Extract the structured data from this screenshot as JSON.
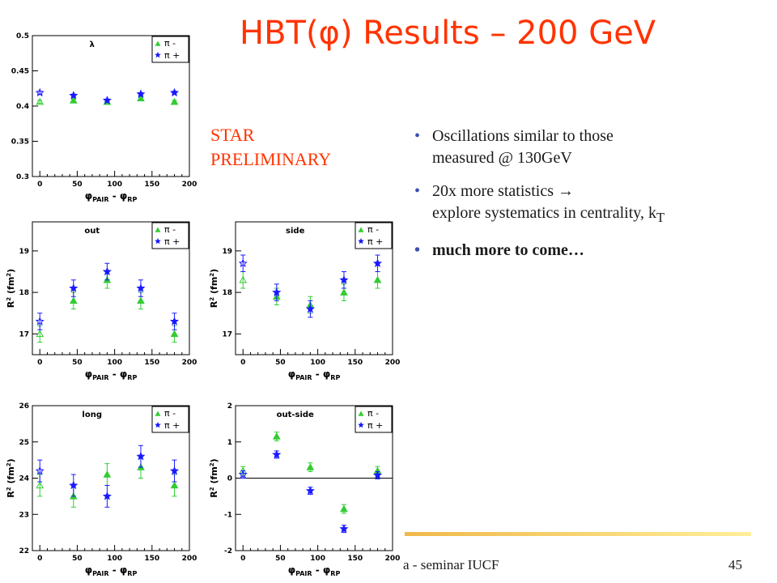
{
  "slide": {
    "title": "HBT(φ) Results – 200 GeV",
    "preliminary": [
      "STAR",
      "PRELIMINARY"
    ],
    "bullets": [
      {
        "lines": [
          "Oscillations similar to those",
          "measured @ 130GeV"
        ],
        "bold": false
      },
      {
        "lines": [
          "20x more statistics → ",
          "explore systematics in centrality, k"
        ],
        "sub": "T",
        "bold": false
      },
      {
        "lines": [
          "much more to come…"
        ],
        "bold": true
      }
    ],
    "footer_text": "a - seminar IUCF",
    "page_number": "45"
  },
  "colors": {
    "title": "#ff3300",
    "pi_minus": "#33cc33",
    "pi_plus": "#1a1aff",
    "footer_bar_start": "#f0b84a",
    "footer_bar_end": "#ffef9a"
  },
  "chart_data": [
    {
      "type": "scatter",
      "title": "λ",
      "xlabel": "φPAIR - φRP",
      "ylabel": "",
      "xlim": [
        -10,
        200
      ],
      "ylim": [
        0.3,
        0.5
      ],
      "xticks": [
        0,
        50,
        100,
        150,
        200
      ],
      "yticks": [
        0.3,
        0.35,
        0.4,
        0.45,
        0.5
      ],
      "ytick_labels": [
        "0.3",
        "0.35",
        "0.4",
        "0.45",
        "0.5"
      ],
      "legend": [
        "π -",
        "π +"
      ],
      "series": [
        {
          "name": "π -",
          "x": [
            0,
            45,
            90,
            135,
            180
          ],
          "y": [
            0.406,
            0.408,
            0.406,
            0.411,
            0.406
          ],
          "err": [
            0.002,
            0.002,
            0.002,
            0.002,
            0.002
          ]
        },
        {
          "name": "π +",
          "x": [
            0,
            45,
            90,
            135,
            180
          ],
          "y": [
            0.419,
            0.415,
            0.408,
            0.417,
            0.419
          ],
          "err": [
            0.002,
            0.002,
            0.002,
            0.002,
            0.002
          ]
        }
      ]
    },
    {
      "type": "scatter",
      "title": "out",
      "xlabel": "φPAIR - φRP",
      "ylabel": "R2 (fm2)",
      "xlim": [
        -10,
        200
      ],
      "ylim": [
        16.5,
        19.7
      ],
      "xticks": [
        0,
        50,
        100,
        150,
        200
      ],
      "yticks": [
        17,
        18,
        19
      ],
      "ytick_labels": [
        "17",
        "18",
        "19"
      ],
      "legend": [
        "π -",
        "π +"
      ],
      "series": [
        {
          "name": "π -",
          "x": [
            0,
            45,
            90,
            135,
            180
          ],
          "y": [
            17.0,
            17.8,
            18.3,
            17.8,
            17.0
          ],
          "err": [
            0.2,
            0.2,
            0.2,
            0.2,
            0.2
          ]
        },
        {
          "name": "π +",
          "x": [
            0,
            45,
            90,
            135,
            180
          ],
          "y": [
            17.3,
            18.1,
            18.5,
            18.1,
            17.3
          ],
          "err": [
            0.2,
            0.2,
            0.2,
            0.2,
            0.2
          ]
        }
      ]
    },
    {
      "type": "scatter",
      "title": "side",
      "xlabel": "φPAIR - φRP",
      "ylabel": "R2 (fm2)",
      "xlim": [
        -10,
        200
      ],
      "ylim": [
        16.5,
        19.7
      ],
      "xticks": [
        0,
        50,
        100,
        150,
        200
      ],
      "yticks": [
        17,
        18,
        19
      ],
      "ytick_labels": [
        "17",
        "18",
        "19"
      ],
      "legend": [
        "π -",
        "π +"
      ],
      "series": [
        {
          "name": "π -",
          "x": [
            0,
            45,
            90,
            135,
            180
          ],
          "y": [
            18.3,
            17.9,
            17.7,
            18.0,
            18.3
          ],
          "err": [
            0.2,
            0.2,
            0.2,
            0.2,
            0.2
          ]
        },
        {
          "name": "π +",
          "x": [
            0,
            45,
            90,
            135,
            180
          ],
          "y": [
            18.7,
            18.0,
            17.6,
            18.3,
            18.7
          ],
          "err": [
            0.2,
            0.2,
            0.2,
            0.2,
            0.2
          ]
        }
      ]
    },
    {
      "type": "scatter",
      "title": "long",
      "xlabel": "φPAIR - φRP",
      "ylabel": "R2 (fm2)",
      "xlim": [
        -10,
        200
      ],
      "ylim": [
        22,
        26
      ],
      "xticks": [
        0,
        50,
        100,
        150,
        200
      ],
      "yticks": [
        22,
        23,
        24,
        25,
        26
      ],
      "ytick_labels": [
        "22",
        "23",
        "24",
        "25",
        "26"
      ],
      "legend": [
        "π -",
        "π +"
      ],
      "series": [
        {
          "name": "π -",
          "x": [
            0,
            45,
            90,
            135,
            180
          ],
          "y": [
            23.8,
            23.5,
            24.1,
            24.3,
            23.8
          ],
          "err": [
            0.3,
            0.3,
            0.3,
            0.3,
            0.3
          ]
        },
        {
          "name": "π +",
          "x": [
            0,
            45,
            90,
            135,
            180
          ],
          "y": [
            24.2,
            23.8,
            23.5,
            24.6,
            24.2
          ],
          "err": [
            0.3,
            0.3,
            0.3,
            0.3,
            0.3
          ]
        }
      ]
    },
    {
      "type": "scatter",
      "title": "out-side",
      "xlabel": "φPAIR - φRP",
      "ylabel": "R2 (fm2)",
      "xlim": [
        -10,
        200
      ],
      "ylim": [
        -2,
        2
      ],
      "xticks": [
        0,
        50,
        100,
        150,
        200
      ],
      "yticks": [
        -2,
        -1,
        0,
        1,
        2
      ],
      "ytick_labels": [
        "-2",
        "-1",
        "0",
        "1",
        "2"
      ],
      "zero_line": true,
      "legend": [
        "π -",
        "π +"
      ],
      "series": [
        {
          "name": "π -",
          "x": [
            0,
            45,
            90,
            135,
            180
          ],
          "y": [
            0.2,
            1.15,
            0.3,
            -0.85,
            0.2
          ],
          "err": [
            0.12,
            0.12,
            0.12,
            0.12,
            0.12
          ]
        },
        {
          "name": "π +",
          "x": [
            0,
            45,
            90,
            135,
            180
          ],
          "y": [
            0.1,
            0.65,
            -0.35,
            -1.4,
            0.08
          ],
          "err": [
            0.1,
            0.1,
            0.1,
            0.1,
            0.1
          ]
        }
      ]
    }
  ]
}
